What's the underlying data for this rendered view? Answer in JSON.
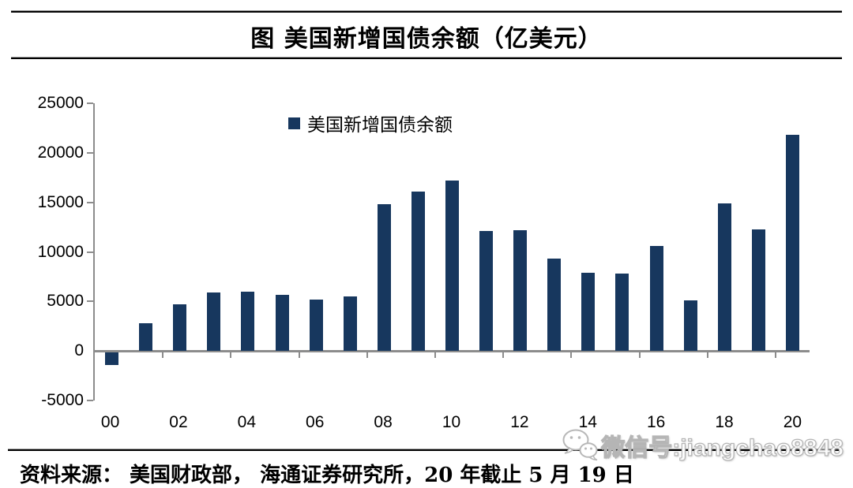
{
  "header": {
    "title": "图 美国新增国债余额（亿美元）"
  },
  "chart_data": {
    "type": "bar",
    "title": "图 美国新增国债余额（亿美元）",
    "legend": "美国新增国债余额",
    "legend_position": "top-inside",
    "bar_color": "#17375E",
    "axis_color": "#8C8C8C",
    "grid": false,
    "xlabel": "",
    "ylabel": "",
    "ylim": [
      -5000,
      25000
    ],
    "yticks": [
      25000,
      20000,
      15000,
      10000,
      5000,
      0,
      -5000
    ],
    "categories": [
      "00",
      "01",
      "02",
      "03",
      "04",
      "05",
      "06",
      "07",
      "08",
      "09",
      "10",
      "11",
      "12",
      "13",
      "14",
      "15",
      "16",
      "17",
      "18",
      "19",
      "20"
    ],
    "x_tick_labels": [
      "00",
      "02",
      "04",
      "06",
      "08",
      "10",
      "12",
      "14",
      "16",
      "18",
      "20"
    ],
    "values": [
      -1300,
      2800,
      4700,
      5900,
      6000,
      5700,
      5200,
      5500,
      14800,
      16100,
      17200,
      12100,
      12200,
      9300,
      7900,
      7800,
      10600,
      5100,
      14900,
      12300,
      21800
    ]
  },
  "footer": {
    "source": "资料来源： 美国财政部， 海通证券研究所，20 年截止 5 月 19 日",
    "watermark": "微信号:jiangchao8848"
  }
}
